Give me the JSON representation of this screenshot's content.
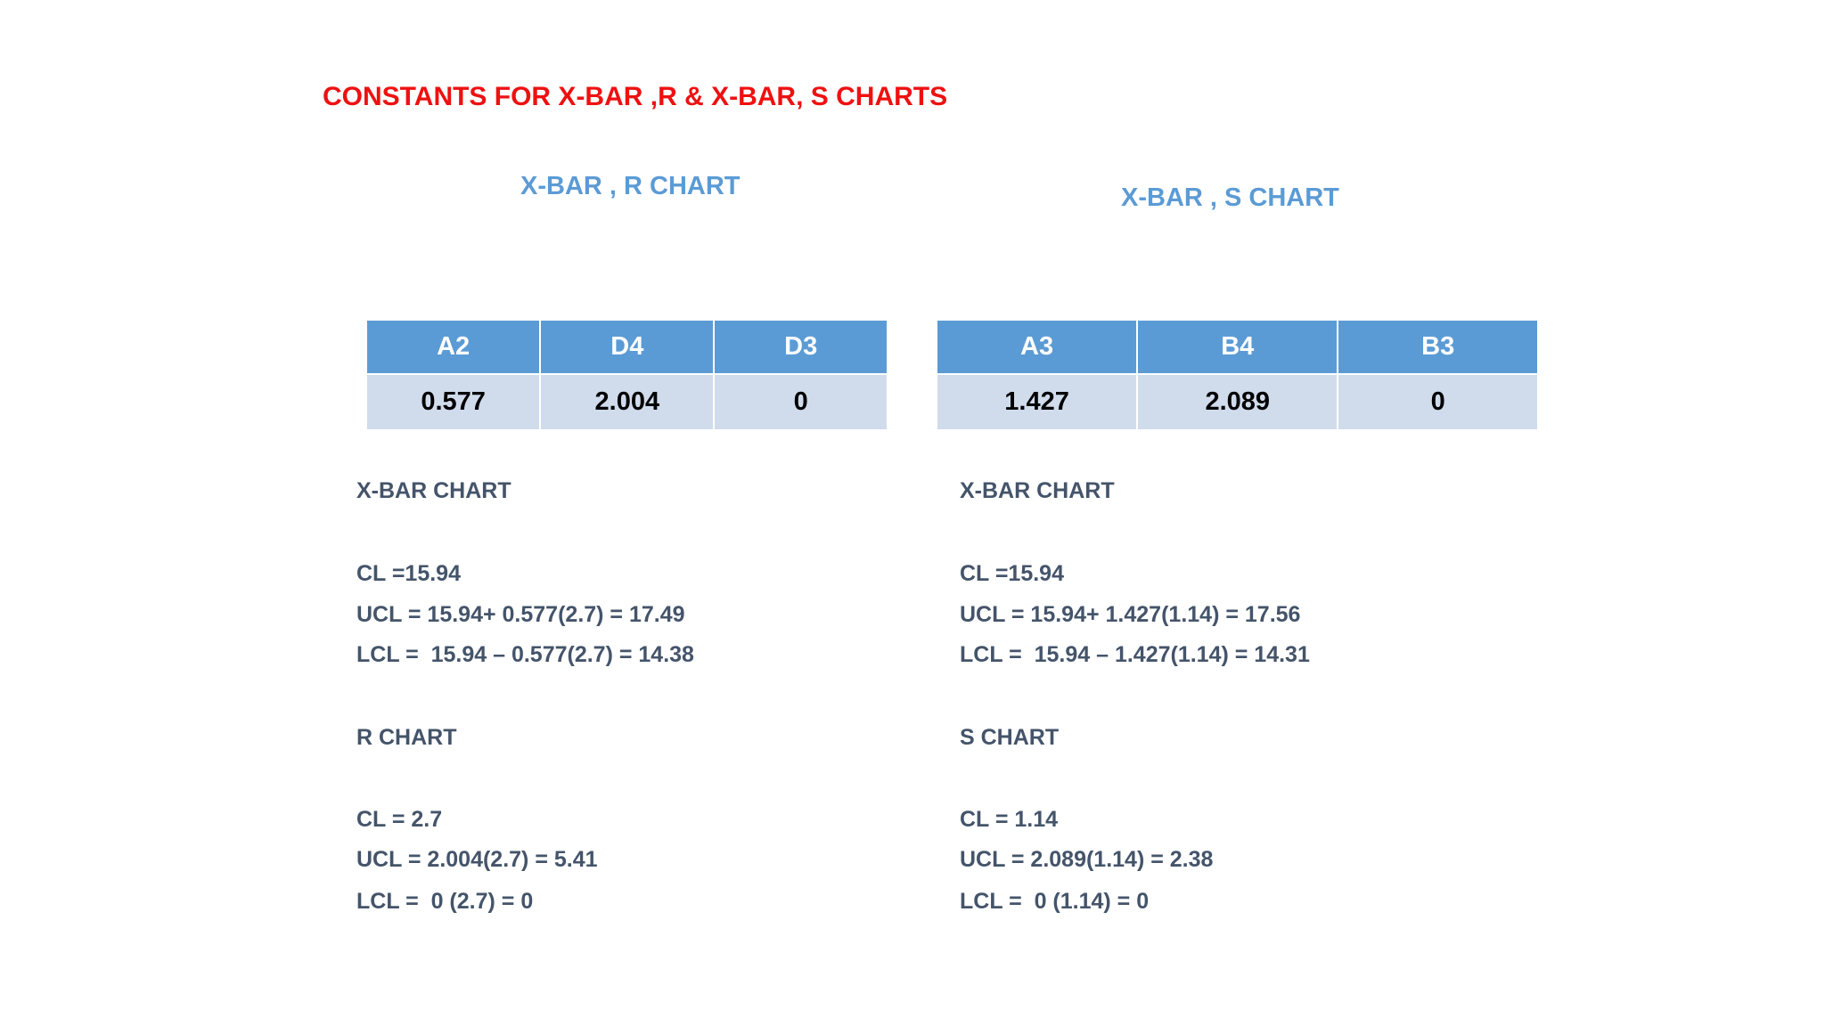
{
  "title": "CONSTANTS FOR X-BAR ,R & X-BAR, S CHARTS",
  "sections": [
    {
      "subtitle": "X-BAR , R CHART",
      "table": {
        "header": [
          "A2",
          "D4",
          "D3"
        ],
        "rows": [
          [
            0.577,
            2.004,
            0
          ]
        ]
      },
      "xbar_heading": "X-BAR CHART",
      "xbar_lines": [
        "CL =15.94",
        "UCL = 15.94+ 0.577(2.7) = 17.49",
        "LCL =  15.94 – 0.577(2.7) = 14.38"
      ],
      "second_heading": "R CHART",
      "second_lines": [
        "CL = 2.7",
        "UCL = 2.004(2.7) = 5.41",
        "LCL =  0 (2.7) = 0"
      ]
    },
    {
      "subtitle": "X-BAR , S CHART",
      "table": {
        "header": [
          "A3",
          "B4",
          "B3"
        ],
        "rows": [
          [
            1.427,
            2.089,
            0
          ]
        ]
      },
      "xbar_heading": "X-BAR CHART",
      "xbar_lines": [
        "CL =15.94",
        "UCL = 15.94+ 1.427(1.14) = 17.56",
        "LCL =  15.94 – 1.427(1.14) = 14.31"
      ],
      "second_heading": "S CHART",
      "second_lines": [
        "CL = 1.14",
        "UCL = 2.089(1.14) = 2.38",
        "LCL =  0 (1.14) = 0"
      ]
    }
  ]
}
